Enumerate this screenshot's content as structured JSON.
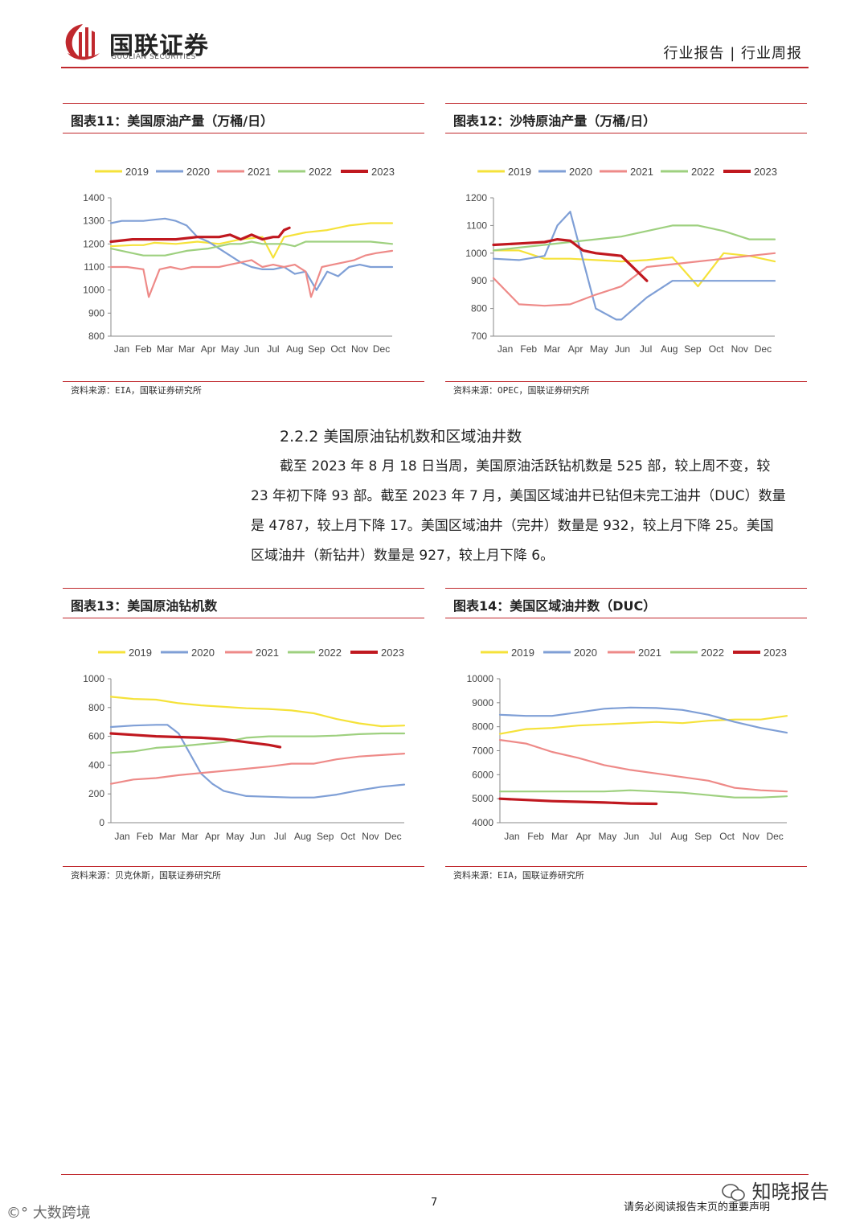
{
  "header": {
    "logo_cn": "国联证券",
    "logo_en": "GUOLIAN SECURITIES",
    "report_type": "行业报告 | 行业周报"
  },
  "legend_labels": [
    "2019",
    "2020",
    "2021",
    "2022",
    "2023"
  ],
  "colors": {
    "2019": "#f5e23a",
    "2020": "#7f9fd6",
    "2021": "#ee8a88",
    "2022": "#9ed07f",
    "2023": "#c0181f",
    "accent": "#c0282d"
  },
  "figures": [
    {
      "title": "图表11：美国原油产量（万桶/日）",
      "source": "资料来源：EIA，国联证券研究所"
    },
    {
      "title": "图表12：沙特原油产量（万桶/日）",
      "source": "资料来源：OPEC，国联证券研究所"
    },
    {
      "title": "图表13：美国原油钻机数",
      "source": "资料来源：贝克休斯，国联证券研究所"
    },
    {
      "title": "图表14：美国区域油井数（DUC）",
      "source": "资料来源：EIA，国联证券研究所"
    }
  ],
  "section": {
    "heading": "2.2.2 美国原油钻机数和区域油井数",
    "lines": [
      "截至 2023 年 8 月 18 日当周，美国原油活跃钻机数是 525 部，较上周不变，较",
      "23 年初下降 93 部。截至 2023 年 7 月，美国区域油井已钻但未完工油井（DUC）数量",
      "是 4787，较上月下降 17。美国区域油井（完井）数量是 932，较上月下降 25。美国",
      "区域油井（新钻井）数量是 927，较上月下降 6。"
    ]
  },
  "footer": {
    "page_number": "7",
    "disclaimer": "请务必阅读报告末页的重要声明",
    "watermark_right": "知晓报告",
    "watermark_left": "大数跨境"
  },
  "chart_data": [
    {
      "type": "line",
      "title": "图表11：美国原油产量（万桶/日）",
      "x_tick_labels": [
        "Jan",
        "Feb",
        "Mar",
        "Mar",
        "Apr",
        "May",
        "Jun",
        "Jul",
        "Aug",
        "Sep",
        "Oct",
        "Nov",
        "Dec"
      ],
      "ylim": [
        800,
        1400
      ],
      "yticks": [
        800,
        900,
        1000,
        1100,
        1200,
        1300,
        1400
      ],
      "x_range": [
        0,
        52
      ],
      "series": [
        {
          "name": "2019",
          "x": [
            0,
            4,
            6,
            8,
            12,
            16,
            20,
            24,
            28,
            30,
            32,
            36,
            40,
            44,
            48,
            52
          ],
          "values": [
            1190,
            1195,
            1195,
            1205,
            1200,
            1210,
            1200,
            1220,
            1230,
            1140,
            1230,
            1250,
            1260,
            1280,
            1290,
            1290
          ]
        },
        {
          "name": "2020",
          "x": [
            0,
            2,
            4,
            6,
            8,
            10,
            12,
            14,
            16,
            18,
            20,
            22,
            24,
            26,
            28,
            30,
            32,
            34,
            36,
            38,
            40,
            42,
            44,
            46,
            48,
            50,
            52
          ],
          "values": [
            1290,
            1300,
            1300,
            1300,
            1305,
            1310,
            1300,
            1280,
            1230,
            1210,
            1180,
            1150,
            1120,
            1100,
            1090,
            1090,
            1100,
            1070,
            1080,
            1000,
            1080,
            1060,
            1100,
            1110,
            1100,
            1100,
            1100
          ]
        },
        {
          "name": "2021",
          "x": [
            0,
            3,
            6,
            7,
            9,
            11,
            13,
            15,
            18,
            20,
            22,
            24,
            26,
            28,
            30,
            32,
            34,
            36,
            37,
            39,
            41,
            43,
            45,
            47,
            49,
            52
          ],
          "values": [
            1100,
            1100,
            1090,
            970,
            1090,
            1100,
            1090,
            1100,
            1100,
            1100,
            1110,
            1120,
            1130,
            1100,
            1110,
            1100,
            1110,
            1080,
            970,
            1100,
            1110,
            1120,
            1130,
            1150,
            1160,
            1170
          ]
        },
        {
          "name": "2022",
          "x": [
            0,
            4,
            6,
            10,
            14,
            18,
            22,
            24,
            26,
            28,
            30,
            32,
            34,
            36,
            40,
            44,
            48,
            52
          ],
          "values": [
            1180,
            1160,
            1150,
            1150,
            1170,
            1180,
            1200,
            1200,
            1210,
            1200,
            1200,
            1200,
            1190,
            1210,
            1210,
            1210,
            1210,
            1200
          ]
        },
        {
          "name": "2023",
          "x": [
            0,
            4,
            8,
            12,
            16,
            18,
            20,
            22,
            24,
            26,
            28,
            30,
            31,
            32,
            33
          ],
          "values": [
            1210,
            1220,
            1220,
            1220,
            1230,
            1230,
            1230,
            1240,
            1220,
            1240,
            1220,
            1230,
            1230,
            1260,
            1270
          ]
        }
      ]
    },
    {
      "type": "line",
      "title": "图表12：沙特原油产量（万桶/日）",
      "x_tick_labels": [
        "Jan",
        "Feb",
        "Mar",
        "Apr",
        "May",
        "Jun",
        "Jul",
        "Aug",
        "Sep",
        "Oct",
        "Nov",
        "Dec"
      ],
      "ylim": [
        700,
        1200
      ],
      "yticks": [
        700,
        800,
        900,
        1000,
        1100,
        1200
      ],
      "x_range": [
        1,
        12
      ],
      "series": [
        {
          "name": "2019",
          "x": [
            1,
            2,
            3,
            4,
            5,
            6,
            7,
            8,
            9,
            10,
            11,
            12
          ],
          "values": [
            1010,
            1010,
            980,
            980,
            975,
            970,
            975,
            985,
            880,
            1000,
            990,
            970
          ]
        },
        {
          "name": "2020",
          "x": [
            1,
            2,
            3,
            3.5,
            4,
            5,
            5.8,
            6,
            7,
            8,
            9,
            10,
            11,
            12
          ],
          "values": [
            980,
            975,
            990,
            1100,
            1150,
            800,
            760,
            760,
            840,
            900,
            900,
            900,
            900,
            900
          ]
        },
        {
          "name": "2021",
          "x": [
            1,
            2,
            3,
            4,
            5,
            6,
            7,
            8,
            9,
            10,
            11,
            12
          ],
          "values": [
            910,
            815,
            810,
            815,
            850,
            880,
            950,
            960,
            970,
            980,
            990,
            1000
          ]
        },
        {
          "name": "2022",
          "x": [
            1,
            2,
            3,
            4,
            5,
            6,
            7,
            8,
            9,
            10,
            11,
            12
          ],
          "values": [
            1010,
            1020,
            1030,
            1040,
            1050,
            1060,
            1080,
            1100,
            1100,
            1080,
            1050,
            1050
          ]
        },
        {
          "name": "2023",
          "x": [
            1,
            2,
            3,
            3.5,
            4,
            4.5,
            5,
            6,
            7
          ],
          "values": [
            1030,
            1035,
            1040,
            1050,
            1045,
            1010,
            1000,
            990,
            900
          ]
        }
      ]
    },
    {
      "type": "line",
      "title": "图表13：美国原油钻机数",
      "x_tick_labels": [
        "Jan",
        "Feb",
        "Mar",
        "Mar",
        "Apr",
        "May",
        "Jun",
        "Jul",
        "Aug",
        "Sep",
        "Oct",
        "Nov",
        "Dec"
      ],
      "ylim": [
        0,
        1000
      ],
      "yticks": [
        0,
        200,
        400,
        600,
        800,
        1000
      ],
      "x_range": [
        0,
        52
      ],
      "series": [
        {
          "name": "2019",
          "x": [
            0,
            4,
            8,
            12,
            16,
            20,
            24,
            28,
            32,
            36,
            40,
            44,
            48,
            52
          ],
          "values": [
            875,
            860,
            855,
            830,
            815,
            805,
            795,
            790,
            780,
            760,
            720,
            690,
            670,
            675
          ]
        },
        {
          "name": "2020",
          "x": [
            0,
            4,
            8,
            10,
            12,
            14,
            16,
            18,
            20,
            24,
            28,
            32,
            36,
            40,
            44,
            48,
            52
          ],
          "values": [
            665,
            675,
            680,
            680,
            620,
            480,
            340,
            270,
            220,
            185,
            180,
            175,
            175,
            195,
            225,
            250,
            265
          ]
        },
        {
          "name": "2021",
          "x": [
            0,
            4,
            8,
            12,
            16,
            20,
            24,
            28,
            32,
            36,
            40,
            44,
            48,
            52
          ],
          "values": [
            270,
            300,
            310,
            330,
            345,
            360,
            375,
            390,
            410,
            410,
            440,
            460,
            470,
            480
          ]
        },
        {
          "name": "2022",
          "x": [
            0,
            4,
            8,
            12,
            16,
            20,
            24,
            28,
            32,
            36,
            40,
            44,
            48,
            52
          ],
          "values": [
            485,
            495,
            520,
            530,
            545,
            560,
            590,
            600,
            600,
            600,
            605,
            615,
            620,
            620
          ]
        },
        {
          "name": "2023",
          "x": [
            0,
            4,
            8,
            12,
            16,
            20,
            24,
            28,
            30
          ],
          "values": [
            620,
            610,
            600,
            595,
            590,
            580,
            560,
            540,
            525
          ]
        }
      ]
    },
    {
      "type": "line",
      "title": "图表14：美国区域油井数（DUC）",
      "x_tick_labels": [
        "Jan",
        "Feb",
        "Mar",
        "Apr",
        "May",
        "Jun",
        "Jul",
        "Aug",
        "Sep",
        "Oct",
        "Nov",
        "Dec"
      ],
      "ylim": [
        4000,
        10000
      ],
      "yticks": [
        4000,
        5000,
        6000,
        7000,
        8000,
        9000,
        10000
      ],
      "x_range": [
        1,
        12
      ],
      "series": [
        {
          "name": "2019",
          "x": [
            1,
            2,
            3,
            4,
            5,
            6,
            7,
            8,
            9,
            10,
            11,
            12
          ],
          "values": [
            7700,
            7900,
            7950,
            8050,
            8100,
            8150,
            8200,
            8150,
            8250,
            8300,
            8300,
            8450
          ]
        },
        {
          "name": "2020",
          "x": [
            1,
            2,
            3,
            4,
            5,
            6,
            7,
            8,
            9,
            10,
            11,
            12
          ],
          "values": [
            8500,
            8450,
            8450,
            8600,
            8750,
            8800,
            8780,
            8700,
            8500,
            8200,
            7950,
            7750
          ]
        },
        {
          "name": "2021",
          "x": [
            1,
            2,
            3,
            4,
            5,
            6,
            7,
            8,
            9,
            10,
            11,
            12
          ],
          "values": [
            7450,
            7300,
            6950,
            6700,
            6400,
            6200,
            6050,
            5900,
            5750,
            5450,
            5350,
            5300
          ]
        },
        {
          "name": "2022",
          "x": [
            1,
            2,
            3,
            4,
            5,
            6,
            7,
            8,
            9,
            10,
            11,
            12
          ],
          "values": [
            5300,
            5300,
            5300,
            5300,
            5300,
            5350,
            5300,
            5250,
            5150,
            5050,
            5050,
            5100
          ]
        },
        {
          "name": "2023",
          "x": [
            1,
            2,
            3,
            4,
            5,
            6,
            7
          ],
          "values": [
            5000,
            4950,
            4900,
            4870,
            4840,
            4800,
            4787
          ]
        }
      ]
    }
  ]
}
